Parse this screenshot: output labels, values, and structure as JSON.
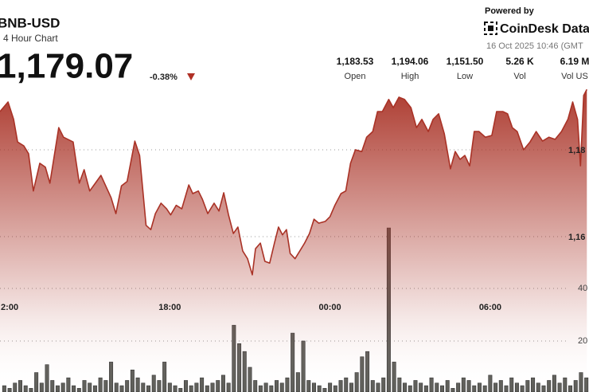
{
  "chart_data": {
    "type": "line",
    "title": "BNB-USD",
    "subtitle": "4 Hour Chart",
    "price": "1,179.07",
    "change": "-0.38%",
    "powered_by": "Powered by",
    "brand": "CoinDesk Data",
    "timestamp": "16 Oct 2025 10:46 (GMT",
    "stats": [
      {
        "value": "1,183.53",
        "label": "Open"
      },
      {
        "value": "1,194.06",
        "label": "High"
      },
      {
        "value": "1,151.50",
        "label": "Low"
      },
      {
        "value": "5.26 K",
        "label": "Vol"
      },
      {
        "value": "6.19 M",
        "label": "Vol US"
      }
    ],
    "grid": true,
    "xlim": [
      -0.36,
      21.7
    ],
    "xticks": [
      {
        "value": 0,
        "label": "2:00"
      },
      {
        "value": 6,
        "label": "18:00"
      },
      {
        "value": 12,
        "label": "00:00"
      },
      {
        "value": 18,
        "label": "06:00"
      }
    ],
    "ylim": [
      1124.2,
      1214.5
    ],
    "yticks": [
      {
        "value": 1160,
        "label": "1,16"
      },
      {
        "value": 1180,
        "label": "1,18"
      }
    ],
    "y2lim": [
      0.6,
      149.7
    ],
    "y2ticks": [
      20,
      40
    ],
    "series": [
      {
        "type": "area",
        "color": "#a93226",
        "x": [
          -0.36,
          -0.06,
          0.15,
          0.3,
          0.53,
          0.71,
          0.89,
          1.13,
          1.34,
          1.51,
          1.84,
          2.02,
          2.38,
          2.61,
          2.79,
          3.0,
          3.21,
          3.42,
          3.62,
          3.8,
          3.98,
          4.19,
          4.4,
          4.69,
          4.87,
          5.11,
          5.29,
          5.46,
          5.67,
          5.88,
          6.03,
          6.24,
          6.45,
          6.71,
          6.86,
          7.07,
          7.22,
          7.42,
          7.66,
          7.84,
          8.02,
          8.2,
          8.38,
          8.55,
          8.73,
          8.91,
          9.09,
          9.21,
          9.39,
          9.56,
          9.74,
          9.92,
          10.07,
          10.22,
          10.37,
          10.51,
          10.69,
          10.87,
          11.05,
          11.23,
          11.4,
          11.58,
          11.82,
          12.0,
          12.18,
          12.41,
          12.59,
          12.77,
          12.95,
          13.19,
          13.37,
          13.6,
          13.78,
          13.96,
          14.2,
          14.37,
          14.58,
          14.79,
          15.03,
          15.24,
          15.44,
          15.68,
          15.86,
          16.07,
          16.28,
          16.51,
          16.69,
          16.87,
          17.05,
          17.23,
          17.4,
          17.58,
          17.82,
          18.06,
          18.24,
          18.47,
          18.65,
          18.83,
          19.01,
          19.25,
          19.49,
          19.72,
          19.96,
          20.2,
          20.43,
          20.67,
          20.91,
          21.09,
          21.27,
          21.38,
          21.5,
          21.62
        ],
        "values": [
          1188.8,
          1191.0,
          1187.0,
          1181.8,
          1180.9,
          1179.1,
          1170.5,
          1176.9,
          1176.0,
          1172.3,
          1185.1,
          1182.9,
          1181.8,
          1172.3,
          1175.4,
          1170.5,
          1172.3,
          1174.1,
          1171.4,
          1169.0,
          1165.3,
          1171.7,
          1172.7,
          1182.0,
          1178.7,
          1162.6,
          1161.6,
          1165.3,
          1167.7,
          1166.4,
          1165.0,
          1167.2,
          1166.4,
          1171.9,
          1169.9,
          1170.5,
          1168.6,
          1165.3,
          1167.7,
          1165.9,
          1170.1,
          1165.0,
          1160.7,
          1162.2,
          1156.7,
          1154.9,
          1151.2,
          1157.2,
          1158.5,
          1154.3,
          1153.9,
          1158.5,
          1162.2,
          1160.4,
          1161.6,
          1156.1,
          1154.9,
          1156.7,
          1158.5,
          1160.7,
          1164.0,
          1163.1,
          1163.5,
          1164.6,
          1167.2,
          1169.9,
          1170.5,
          1176.9,
          1180.0,
          1179.6,
          1182.9,
          1184.2,
          1188.8,
          1188.8,
          1191.6,
          1189.7,
          1192.1,
          1191.6,
          1189.7,
          1185.1,
          1187.0,
          1184.2,
          1187.0,
          1188.3,
          1183.7,
          1175.6,
          1179.6,
          1177.8,
          1178.7,
          1176.3,
          1184.2,
          1184.2,
          1182.9,
          1183.3,
          1188.8,
          1188.8,
          1188.3,
          1185.1,
          1184.2,
          1180.0,
          1181.8,
          1184.2,
          1182.0,
          1182.9,
          1182.4,
          1184.2,
          1187.0,
          1191.0,
          1187.0,
          1176.3,
          1192.5,
          1193.9
        ]
      },
      {
        "type": "bar",
        "axis": "y2",
        "color": "#5f5f5a",
        "x": [
          -0.2,
          0,
          0.2,
          0.4,
          0.6,
          0.8,
          1,
          1.2,
          1.4,
          1.6,
          1.8,
          2,
          2.2,
          2.4,
          2.6,
          2.8,
          3,
          3.2,
          3.4,
          3.6,
          3.8,
          4,
          4.2,
          4.4,
          4.6,
          4.8,
          5,
          5.2,
          5.4,
          5.6,
          5.8,
          6,
          6.2,
          6.4,
          6.6,
          6.8,
          7,
          7.2,
          7.4,
          7.6,
          7.8,
          8,
          8.2,
          8.4,
          8.6,
          8.8,
          9,
          9.2,
          9.4,
          9.6,
          9.8,
          10,
          10.2,
          10.4,
          10.6,
          10.8,
          11,
          11.2,
          11.4,
          11.6,
          11.8,
          12,
          12.2,
          12.4,
          12.6,
          12.8,
          13,
          13.2,
          13.4,
          13.6,
          13.8,
          14,
          14.2,
          14.4,
          14.6,
          14.8,
          15,
          15.2,
          15.4,
          15.6,
          15.8,
          16,
          16.2,
          16.4,
          16.6,
          16.8,
          17,
          17.2,
          17.4,
          17.6,
          17.8,
          18,
          18.2,
          18.4,
          18.6,
          18.8,
          19,
          19.2,
          19.4,
          19.6,
          19.8,
          20,
          20.2,
          20.4,
          20.6,
          20.8,
          21,
          21.2,
          21.4,
          21.6
        ],
        "values": [
          3,
          2,
          4,
          5,
          3,
          2,
          8,
          4,
          11,
          5,
          3,
          4,
          6,
          3,
          2,
          5,
          4,
          3,
          6,
          5,
          12,
          4,
          3,
          5,
          9,
          6,
          4,
          3,
          7,
          5,
          12,
          4,
          3,
          2,
          5,
          3,
          4,
          6,
          3,
          4,
          5,
          7,
          4,
          26,
          19,
          16,
          10,
          5,
          3,
          4,
          3,
          5,
          4,
          6,
          23,
          8,
          20,
          5,
          4,
          3,
          2,
          4,
          3,
          5,
          6,
          4,
          8,
          14,
          16,
          5,
          4,
          6,
          63,
          12,
          6,
          4,
          3,
          5,
          4,
          3,
          6,
          4,
          3,
          5,
          2,
          4,
          6,
          5,
          3,
          4,
          3,
          7,
          4,
          5,
          3,
          6,
          4,
          3,
          5,
          6,
          4,
          3,
          5,
          7,
          4,
          6,
          3,
          5,
          8,
          6
        ]
      }
    ]
  }
}
